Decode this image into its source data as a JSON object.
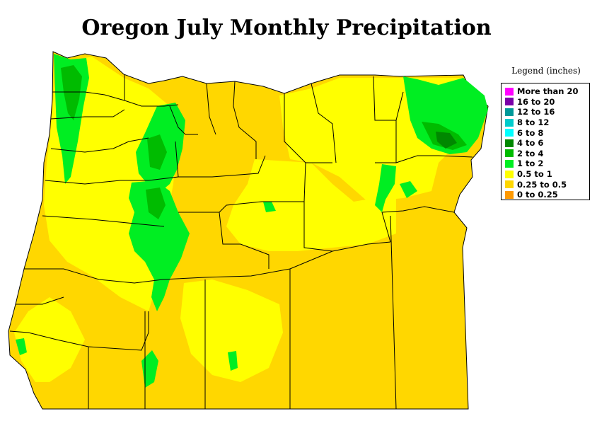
{
  "title": "Oregon July Monthly Precipitation",
  "legend": {
    "title": "Legend (inches)",
    "items": [
      {
        "label": "More than 20",
        "color": "#ff00ff"
      },
      {
        "label": "16 to 20",
        "color": "#7a00a8"
      },
      {
        "label": "12 to 16",
        "color": "#009999"
      },
      {
        "label": "8 to 12",
        "color": "#00cccc"
      },
      {
        "label": "6 to 8",
        "color": "#00ffff"
      },
      {
        "label": "4 to 6",
        "color": "#008800"
      },
      {
        "label": "2 to 4",
        "color": "#00bb00"
      },
      {
        "label": "1 to 2",
        "color": "#00ee22"
      },
      {
        "label": "0.5 to 1",
        "color": "#ffff00"
      },
      {
        "label": "0.25 to 0.5",
        "color": "#ffd700"
      },
      {
        "label": "0 to 0.25",
        "color": "#ff9900"
      }
    ]
  }
}
